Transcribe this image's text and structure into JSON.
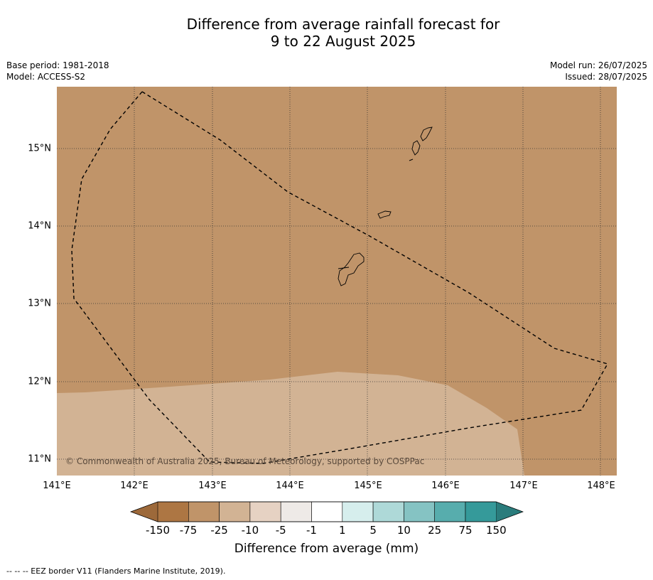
{
  "title": {
    "line1": "Difference from average rainfall forecast for",
    "line2": "9 to 22 August 2025"
  },
  "meta": {
    "base_period": "Base period: 1981-2018",
    "model": "Model: ACCESS-S2",
    "model_run": "Model run: 26/07/2025",
    "issued": "Issued: 28/07/2025"
  },
  "map": {
    "lat_labels": [
      "15°N",
      "14°N",
      "13°N",
      "12°N",
      "11°N"
    ],
    "lon_labels": [
      "141°E",
      "142°E",
      "143°E",
      "144°E",
      "145°E",
      "146°E",
      "147°E",
      "148°E"
    ],
    "copyright": "© Commonwealth of Australia 2025, Bureau of Meteorology, supported by COSPPac",
    "regions": [
      {
        "name": "-75 to -25 mm",
        "color": "#c09469"
      },
      {
        "name": "-25 to -10 mm",
        "color": "#d2b394"
      }
    ],
    "features": [
      "eez-border-dashed",
      "guam-island",
      "rota-island",
      "tinian-island",
      "saipan-island"
    ]
  },
  "colorbar": {
    "ticks": [
      "-150",
      "-75",
      "-25",
      "-10",
      "-5",
      "-1",
      "1",
      "5",
      "10",
      "25",
      "75",
      "150"
    ],
    "colors": [
      "#9d693a",
      "#ad7643",
      "#c09469",
      "#d2b394",
      "#e6d2c3",
      "#eeeae7",
      "#ffffff",
      "#d6eeed",
      "#aed9d8",
      "#85c3c3",
      "#57adad",
      "#359a9a",
      "#2a7c7c"
    ],
    "title": "Difference from average (mm)"
  },
  "legend_note": "--  --  -- EEZ border V11 (Flanders Marine Institute, 2019)."
}
